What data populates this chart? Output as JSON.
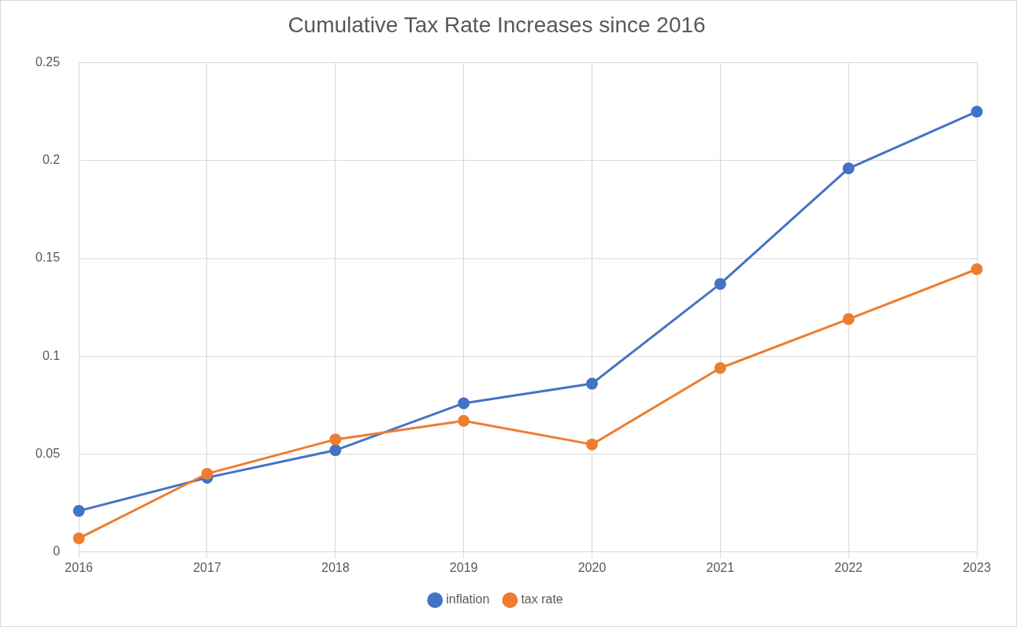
{
  "chart_data": {
    "type": "line",
    "title": "Cumulative Tax Rate Increases since 2016",
    "categories": [
      "2016",
      "2017",
      "2018",
      "2019",
      "2020",
      "2021",
      "2022",
      "2023"
    ],
    "series": [
      {
        "name": "inflation",
        "color": "#4472c4",
        "values": [
          0.021,
          0.038,
          0.052,
          0.076,
          0.086,
          0.137,
          0.196,
          0.225
        ]
      },
      {
        "name": "tax rate",
        "color": "#ed7d31",
        "values": [
          0.007,
          0.04,
          0.0575,
          0.067,
          0.055,
          0.094,
          0.119,
          0.1445
        ]
      }
    ],
    "ylim": [
      0,
      0.25
    ],
    "yticks": [
      0,
      0.05,
      0.1,
      0.15,
      0.2,
      0.25
    ],
    "grid": true,
    "legend": "bottom",
    "marker": "circle",
    "line_style": "solid"
  }
}
